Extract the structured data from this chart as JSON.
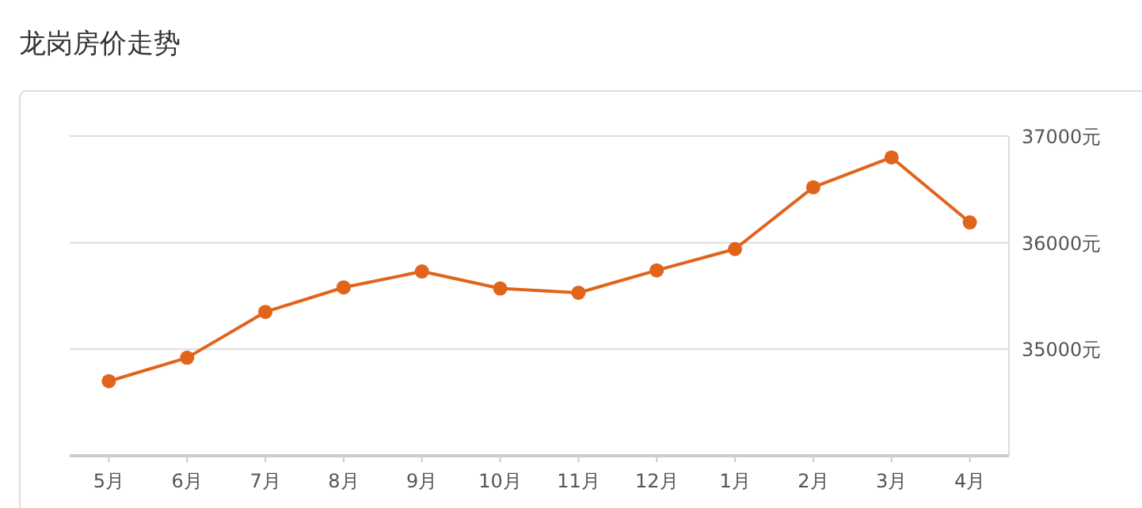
{
  "chart_data": {
    "type": "line",
    "title": "龙岗房价走势",
    "categories": [
      "5月",
      "6月",
      "7月",
      "8月",
      "9月",
      "10月",
      "11月",
      "12月",
      "1月",
      "2月",
      "3月",
      "4月"
    ],
    "values": [
      34700,
      34920,
      35350,
      35580,
      35730,
      35570,
      35530,
      35740,
      35940,
      36520,
      36800,
      36190
    ],
    "color": "#e0641c",
    "ylim": [
      34000,
      37000
    ],
    "yticks": [
      {
        "value": 35000,
        "label": "35000元"
      },
      {
        "value": 36000,
        "label": "36000元"
      },
      {
        "value": 37000,
        "label": "37000元"
      }
    ],
    "grid": "y",
    "marker": "circle",
    "line_style": "solid"
  }
}
